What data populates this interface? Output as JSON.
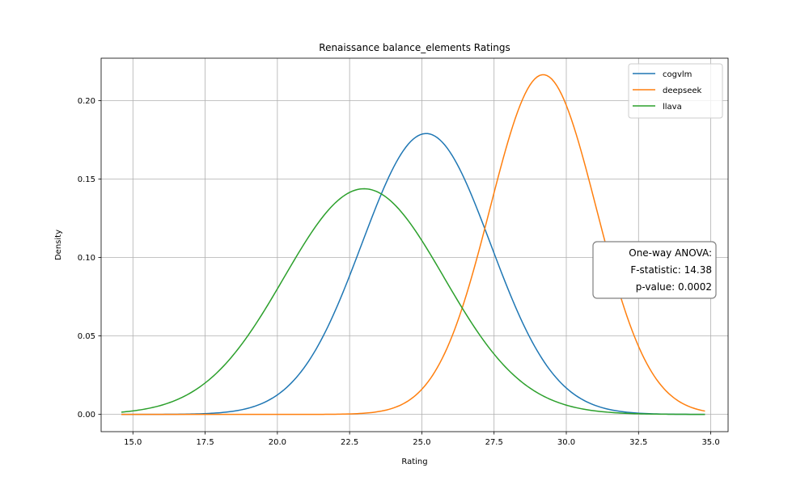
{
  "chart_data": {
    "type": "line",
    "title": "Renaissance balance_elements Ratings",
    "xlabel": "Rating",
    "ylabel": "Density",
    "xlim": [
      13.9,
      35.6
    ],
    "ylim": [
      -0.011,
      0.227
    ],
    "xticks": [
      15.0,
      17.5,
      20.0,
      22.5,
      25.0,
      27.5,
      30.0,
      32.5,
      35.0
    ],
    "xtick_labels": [
      "15.0",
      "17.5",
      "20.0",
      "22.5",
      "25.0",
      "27.5",
      "30.0",
      "32.5",
      "35.0"
    ],
    "yticks": [
      0.0,
      0.05,
      0.1,
      0.15,
      0.2
    ],
    "ytick_labels": [
      "0.00",
      "0.05",
      "0.10",
      "0.15",
      "0.20"
    ],
    "grid": true,
    "legend_position": "top-right",
    "series": [
      {
        "name": "cogvlm",
        "color": "#1f77b4",
        "x_range": [
          14.6,
          34.8
        ],
        "peak_x": 25.15,
        "peak_y": 0.179,
        "sigma": 2.23
      },
      {
        "name": "deepseek",
        "color": "#ff7f0e",
        "x_range": [
          14.6,
          34.8
        ],
        "peak_x": 29.2,
        "peak_y": 0.2165,
        "sigma": 1.84
      },
      {
        "name": "llava",
        "color": "#2ca02c",
        "x_range": [
          14.6,
          34.8
        ],
        "peak_x": 23.0,
        "peak_y": 0.1438,
        "sigma": 2.77
      }
    ],
    "annotation": {
      "lines": [
        "One-way ANOVA:",
        "F-statistic: 14.38",
        "p-value: 0.0002"
      ]
    }
  }
}
